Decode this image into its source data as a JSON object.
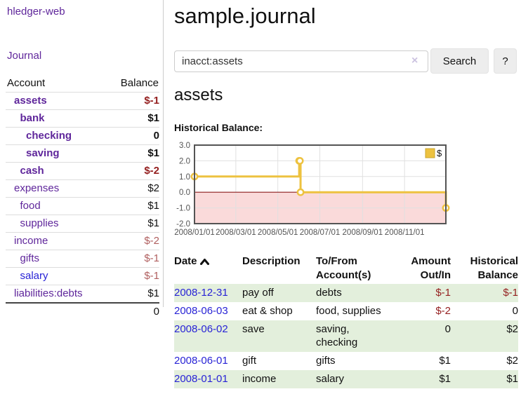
{
  "app": {
    "brand": "hledger-web"
  },
  "sidebar": {
    "journal_link": "Journal",
    "accounts": {
      "account_header": "Account",
      "balance_header": "Balance",
      "rows": [
        {
          "name": "assets",
          "balance": "$-1",
          "indent": 0,
          "bold": true,
          "neg": "strong",
          "link": "visited"
        },
        {
          "name": "bank",
          "balance": "$1",
          "indent": 1,
          "bold": true,
          "neg": "",
          "link": "visited"
        },
        {
          "name": "checking",
          "balance": "0",
          "indent": 2,
          "bold": true,
          "neg": "",
          "link": "visited"
        },
        {
          "name": "saving",
          "balance": "$1",
          "indent": 2,
          "bold": true,
          "neg": "",
          "link": "visited"
        },
        {
          "name": "cash",
          "balance": "$-2",
          "indent": 1,
          "bold": true,
          "neg": "strong",
          "link": "visited"
        },
        {
          "name": "expenses",
          "balance": "$2",
          "indent": 0,
          "bold": false,
          "neg": "",
          "link": "visited"
        },
        {
          "name": "food",
          "balance": "$1",
          "indent": 1,
          "bold": false,
          "neg": "",
          "link": "visited"
        },
        {
          "name": "supplies",
          "balance": "$1",
          "indent": 1,
          "bold": false,
          "neg": "",
          "link": "visited"
        },
        {
          "name": "income",
          "balance": "$-2",
          "indent": 0,
          "bold": false,
          "neg": "muted",
          "link": "visited"
        },
        {
          "name": "gifts",
          "balance": "$-1",
          "indent": 1,
          "bold": false,
          "neg": "muted",
          "link": "visited"
        },
        {
          "name": "salary",
          "balance": "$-1",
          "indent": 1,
          "bold": false,
          "neg": "muted",
          "link": "unvisited"
        },
        {
          "name": "liabilities:debts",
          "balance": "$1",
          "indent": 0,
          "bold": false,
          "neg": "",
          "link": "visited"
        }
      ],
      "total": "0"
    }
  },
  "main": {
    "title": "sample.journal",
    "search": {
      "value": "inacct:assets",
      "clear_icon": "×",
      "search_button": "Search",
      "help_button": "?"
    },
    "account_heading": "assets",
    "chart_label": "Historical Balance:"
  },
  "chart_data": {
    "type": "line",
    "style": "step",
    "title": "Historical Balance",
    "x_range": [
      "2008-01-01",
      "2008-12-31"
    ],
    "ylim": [
      -2,
      3
    ],
    "y_ticks": [
      {
        "label": "3.0",
        "value": 3
      },
      {
        "label": "2.0",
        "value": 2
      },
      {
        "label": "1.0",
        "value": 1
      },
      {
        "label": "0.0",
        "value": 0
      },
      {
        "label": "-1.0",
        "value": -1
      },
      {
        "label": "-2.0",
        "value": -2
      }
    ],
    "x_ticks": [
      {
        "label": "2008/01/01",
        "date": "2008-01-01"
      },
      {
        "label": "2008/03/01",
        "date": "2008-03-01"
      },
      {
        "label": "2008/05/01",
        "date": "2008-05-01"
      },
      {
        "label": "2008/07/01",
        "date": "2008-07-01"
      },
      {
        "label": "2008/09/01",
        "date": "2008-09-01"
      },
      {
        "label": "2008/11/01",
        "date": "2008-11-01"
      }
    ],
    "series": [
      {
        "name": "$",
        "color": "#edc240",
        "points": [
          [
            "2008-01-01",
            1
          ],
          [
            "2008-06-01",
            2
          ],
          [
            "2008-06-02",
            2
          ],
          [
            "2008-06-03",
            0
          ],
          [
            "2008-12-31",
            -1
          ]
        ]
      }
    ],
    "legend": {
      "label": "$",
      "position": "top-right",
      "swatch_color": "#edc240"
    },
    "grid": true,
    "zero_line_color": "#8b1d1d",
    "negative_region_color": "#fadada",
    "border_color": "#545454"
  },
  "register": {
    "headers": {
      "date": "Date",
      "description": "Description",
      "accounts": "To/From\nAccount(s)",
      "amount": "Amount\nOut/In",
      "balance": "Historical\nBalance"
    },
    "sort": {
      "column": "date",
      "direction": "asc"
    },
    "rows": [
      {
        "date": "2008-12-31",
        "description": "pay off",
        "accounts": "debts",
        "amount": "$-1",
        "amount_neg": true,
        "balance": "$-1",
        "balance_neg": true
      },
      {
        "date": "2008-06-03",
        "description": "eat & shop",
        "accounts": "food, supplies",
        "amount": "$-2",
        "amount_neg": true,
        "balance": "0",
        "balance_neg": false
      },
      {
        "date": "2008-06-02",
        "description": "save",
        "accounts": "saving, checking",
        "amount": "0",
        "amount_neg": false,
        "balance": "$2",
        "balance_neg": false
      },
      {
        "date": "2008-06-01",
        "description": "gift",
        "accounts": "gifts",
        "amount": "$1",
        "amount_neg": false,
        "balance": "$2",
        "balance_neg": false
      },
      {
        "date": "2008-01-01",
        "description": "income",
        "accounts": "salary",
        "amount": "$1",
        "amount_neg": false,
        "balance": "$1",
        "balance_neg": false
      }
    ]
  }
}
